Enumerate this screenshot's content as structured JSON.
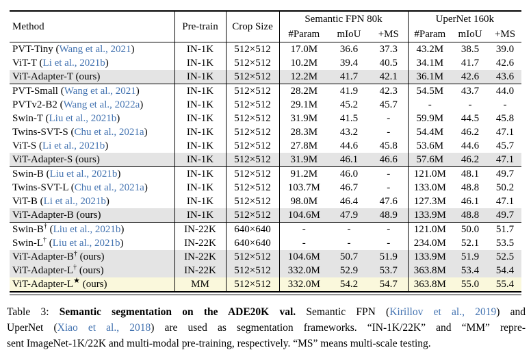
{
  "colors": {
    "citation_blue": "#4272b0",
    "highlight_gray": "#e4e4e4",
    "highlight_yellow": "#faf8dc"
  },
  "table": {
    "header": {
      "method": "Method",
      "pretrain": "Pre-train",
      "crop": "Crop Size",
      "group1": "Semantic FPN 80k",
      "group2": "UperNet 160k",
      "sub": [
        "#Param",
        "mIoU",
        "+MS"
      ]
    },
    "groups": [
      {
        "rows": [
          {
            "name": "PVT-Tiny",
            "sup": "",
            "cite": "Wang et al., 2021",
            "ours": false,
            "hl": "none",
            "pretrain": "IN-1K",
            "crop": "512×512",
            "fpn": [
              "17.0M",
              "36.6",
              "37.3"
            ],
            "uper": [
              "43.2M",
              "38.5",
              "39.0"
            ]
          },
          {
            "name": "ViT-T",
            "sup": "",
            "cite": "Li et al., 2021b",
            "ours": false,
            "hl": "none",
            "pretrain": "IN-1K",
            "crop": "512×512",
            "fpn": [
              "10.2M",
              "39.4",
              "40.5"
            ],
            "uper": [
              "34.1M",
              "41.7",
              "42.6"
            ]
          },
          {
            "name": "ViT-Adapter-T",
            "sup": "",
            "cite": "",
            "ours": true,
            "hl": "gray",
            "pretrain": "IN-1K",
            "crop": "512×512",
            "fpn": [
              "12.2M",
              "41.7",
              "42.1"
            ],
            "uper": [
              "36.1M",
              "42.6",
              "43.6"
            ]
          }
        ]
      },
      {
        "rows": [
          {
            "name": "PVT-Small",
            "sup": "",
            "cite": "Wang et al., 2021",
            "ours": false,
            "hl": "none",
            "pretrain": "IN-1K",
            "crop": "512×512",
            "fpn": [
              "28.2M",
              "41.9",
              "42.3"
            ],
            "uper": [
              "54.5M",
              "43.7",
              "44.0"
            ]
          },
          {
            "name": "PVTv2-B2",
            "sup": "",
            "cite": "Wang et al., 2022a",
            "ours": false,
            "hl": "none",
            "pretrain": "IN-1K",
            "crop": "512×512",
            "fpn": [
              "29.1M",
              "45.2",
              "45.7"
            ],
            "uper": [
              "-",
              "-",
              "-"
            ]
          },
          {
            "name": "Swin-T",
            "sup": "",
            "cite": "Liu et al., 2021b",
            "ours": false,
            "hl": "none",
            "pretrain": "IN-1K",
            "crop": "512×512",
            "fpn": [
              "31.9M",
              "41.5",
              "-"
            ],
            "uper": [
              "59.9M",
              "44.5",
              "45.8"
            ]
          },
          {
            "name": "Twins-SVT-S",
            "sup": "",
            "cite": "Chu et al., 2021a",
            "ours": false,
            "hl": "none",
            "pretrain": "IN-1K",
            "crop": "512×512",
            "fpn": [
              "28.3M",
              "43.2",
              "-"
            ],
            "uper": [
              "54.4M",
              "46.2",
              "47.1"
            ]
          },
          {
            "name": "ViT-S",
            "sup": "",
            "cite": "Li et al., 2021b",
            "ours": false,
            "hl": "none",
            "pretrain": "IN-1K",
            "crop": "512×512",
            "fpn": [
              "27.8M",
              "44.6",
              "45.8"
            ],
            "uper": [
              "53.6M",
              "44.6",
              "45.7"
            ]
          },
          {
            "name": "ViT-Adapter-S",
            "sup": "",
            "cite": "",
            "ours": true,
            "hl": "gray",
            "pretrain": "IN-1K",
            "crop": "512×512",
            "fpn": [
              "31.9M",
              "46.1",
              "46.6"
            ],
            "uper": [
              "57.6M",
              "46.2",
              "47.1"
            ]
          }
        ]
      },
      {
        "rows": [
          {
            "name": "Swin-B",
            "sup": "",
            "cite": "Liu et al., 2021b",
            "ours": false,
            "hl": "none",
            "pretrain": "IN-1K",
            "crop": "512×512",
            "fpn": [
              "91.2M",
              "46.0",
              "-"
            ],
            "uper": [
              "121.0M",
              "48.1",
              "49.7"
            ]
          },
          {
            "name": "Twins-SVT-L",
            "sup": "",
            "cite": "Chu et al., 2021a",
            "ours": false,
            "hl": "none",
            "pretrain": "IN-1K",
            "crop": "512×512",
            "fpn": [
              "103.7M",
              "46.7",
              "-"
            ],
            "uper": [
              "133.0M",
              "48.8",
              "50.2"
            ]
          },
          {
            "name": "ViT-B",
            "sup": "",
            "cite": "Li et al., 2021b",
            "ours": false,
            "hl": "none",
            "pretrain": "IN-1K",
            "crop": "512×512",
            "fpn": [
              "98.0M",
              "46.4",
              "47.6"
            ],
            "uper": [
              "127.3M",
              "46.1",
              "47.1"
            ]
          },
          {
            "name": "ViT-Adapter-B",
            "sup": "",
            "cite": "",
            "ours": true,
            "hl": "gray",
            "pretrain": "IN-1K",
            "crop": "512×512",
            "fpn": [
              "104.6M",
              "47.9",
              "48.9"
            ],
            "uper": [
              "133.9M",
              "48.8",
              "49.7"
            ]
          }
        ]
      },
      {
        "rows": [
          {
            "name": "Swin-B",
            "sup": "†",
            "cite": "Liu et al., 2021b",
            "ours": false,
            "hl": "none",
            "pretrain": "IN-22K",
            "crop": "640×640",
            "fpn": [
              "-",
              "-",
              "-"
            ],
            "uper": [
              "121.0M",
              "50.0",
              "51.7"
            ]
          },
          {
            "name": "Swin-L",
            "sup": "†",
            "cite": "Liu et al., 2021b",
            "ours": false,
            "hl": "none",
            "pretrain": "IN-22K",
            "crop": "640×640",
            "fpn": [
              "-",
              "-",
              "-"
            ],
            "uper": [
              "234.0M",
              "52.1",
              "53.5"
            ]
          },
          {
            "name": "ViT-Adapter-B",
            "sup": "†",
            "cite": "",
            "ours": true,
            "hl": "gray",
            "pretrain": "IN-22K",
            "crop": "512×512",
            "fpn": [
              "104.6M",
              "50.7",
              "51.9"
            ],
            "uper": [
              "133.9M",
              "51.9",
              "52.5"
            ]
          },
          {
            "name": "ViT-Adapter-L",
            "sup": "†",
            "cite": "",
            "ours": true,
            "hl": "gray",
            "pretrain": "IN-22K",
            "crop": "512×512",
            "fpn": [
              "332.0M",
              "52.9",
              "53.7"
            ],
            "uper": [
              "363.8M",
              "53.4",
              "54.4"
            ]
          },
          {
            "name": "ViT-Adapter-L",
            "sup": "★",
            "cite": "",
            "ours": true,
            "hl": "yellow",
            "pretrain": "MM",
            "crop": "512×512",
            "fpn": [
              "332.0M",
              "54.2",
              "54.7"
            ],
            "uper": [
              "363.8M",
              "55.0",
              "55.4"
            ]
          }
        ]
      }
    ],
    "ours_label": "ours"
  },
  "caption": {
    "lines": [
      [
        {
          "t": "Table 3: "
        },
        {
          "t": "Semantic segmentation on the ADE20K val.",
          "bold": true
        },
        {
          "t": " Semantic FPN ("
        },
        {
          "t": "Kirillov et al., 2019",
          "blue": true
        },
        {
          "t": ") and"
        }
      ],
      [
        {
          "t": "UperNet ("
        },
        {
          "t": "Xiao et al., 2018",
          "blue": true
        },
        {
          "t": ") are used as segmentation frameworks. “IN-1K/22K” and “MM” repre-"
        }
      ],
      [
        {
          "t": "sent ImageNet-1K/22K and multi-modal pre-training, respectively. “MS” means multi-scale testing."
        }
      ]
    ]
  }
}
